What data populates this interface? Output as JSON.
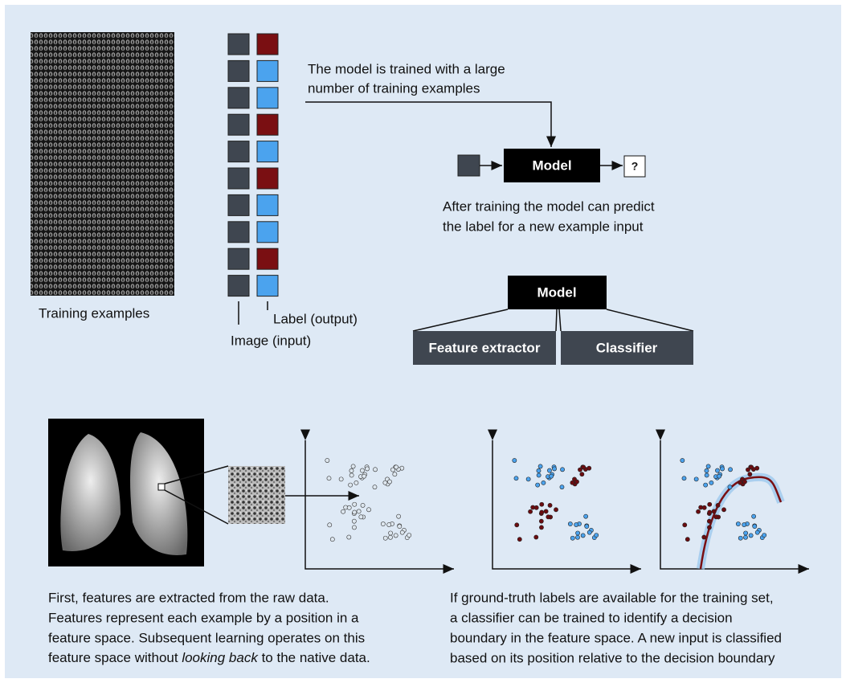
{
  "training": {
    "caption": "Training examples",
    "image_label": "Image (input)",
    "label_label": "Label (output)"
  },
  "training_note": [
    "The model is trained with a large",
    "number of training examples"
  ],
  "inference": {
    "model": "Model",
    "output": "?",
    "note": [
      "After training the model can predict",
      "the label for a new example input"
    ]
  },
  "architecture": {
    "model": "Model",
    "feature_extractor": "Feature extractor",
    "classifier": "Classifier"
  },
  "left_text": [
    "First, features are extracted from the raw data.",
    "Features represent each example by a position in a",
    "feature space. Subsequent learning operates on this"
  ],
  "left_text_last": {
    "before": "feature space without ",
    "emphasis": "looking back",
    "after": " to the native data."
  },
  "right_text": [
    "If ground-truth labels are available for the training set,",
    "a classifier can be trained to identify a decision",
    "boundary in the feature space. A new input is classified",
    "based on its position relative to the decision boundary"
  ]
}
